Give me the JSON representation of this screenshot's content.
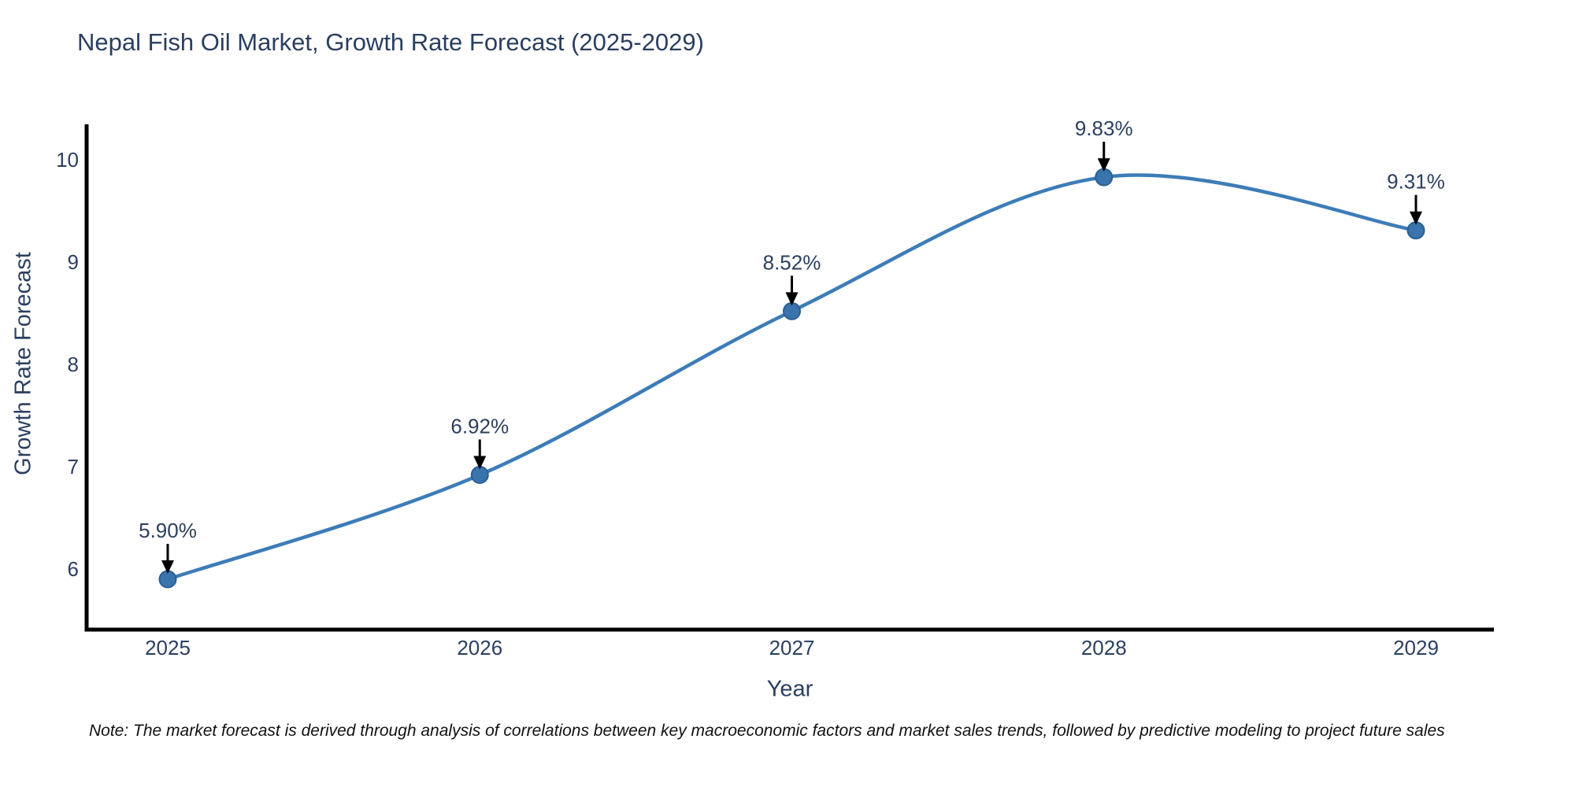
{
  "chart_data": {
    "type": "line",
    "title": "Nepal Fish Oil Market, Growth Rate Forecast (2025-2029)",
    "xlabel": "Year",
    "ylabel": "Growth Rate Forecast",
    "categories": [
      "2025",
      "2026",
      "2027",
      "2028",
      "2029"
    ],
    "values": [
      5.9,
      6.92,
      8.52,
      9.83,
      9.31
    ],
    "point_labels": [
      "5.90%",
      "6.92%",
      "8.52%",
      "9.83%",
      "9.31%"
    ],
    "yticks": [
      6,
      7,
      8,
      9,
      10
    ],
    "ylim": [
      5.41,
      10.33
    ],
    "line_shape": "spline",
    "grid": false,
    "legend_position": "none",
    "colors": {
      "line": "#3d7cb8",
      "marker_fill": "#3a74ad",
      "marker_stroke": "#2b5f94",
      "axis_line": "#000000",
      "tick_text": "#2a3f5f",
      "annotation_text": "#2a3f5f",
      "annotation_arrow": "#000000",
      "title_text": "#2a3f5f"
    }
  },
  "footnote": {
    "text": "Note: The market forecast is derived through analysis of correlations between key macroeconomic factors and market sales trends, followed by predictive modeling to project future sales"
  }
}
